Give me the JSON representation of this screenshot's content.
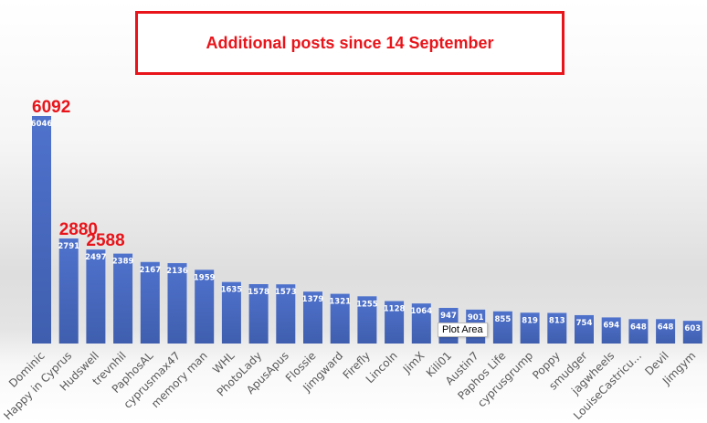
{
  "chart_data": {
    "type": "bar",
    "title": "Additional posts since 14 September",
    "categories": [
      "Dominic",
      "Happy in Cyprus",
      "Hudswell",
      "trevnhil",
      "PaphosAL",
      "cyprusmax47",
      "memory man",
      "WHL",
      "PhotoLady",
      "ApusApus",
      "Flossie",
      "Jimgward",
      "Firefly",
      "Lincoln",
      "JimX",
      "Kili01",
      "Austin7",
      "Paphos Life",
      "cyprusgrump",
      "Poppy",
      "smudger",
      "jagwheels",
      "LouiseCastricu...",
      "Devil",
      "Jimgym"
    ],
    "values": [
      6046,
      2791,
      2497,
      2389,
      2167,
      2136,
      1959,
      1635,
      1578,
      1573,
      1379,
      1321,
      1255,
      1128,
      1064,
      947,
      901,
      855,
      819,
      813,
      754,
      694,
      648,
      648,
      603
    ],
    "annotations": [
      {
        "category": "Dominic",
        "text": "6092"
      },
      {
        "category": "Happy in Cyprus",
        "text": "2880"
      },
      {
        "category": "Hudswell",
        "text": "2588"
      }
    ],
    "bar_color": "#4a6cc4",
    "annotation_color": "#e8141a",
    "grid": false,
    "legend": "none"
  },
  "tooltip": "Plot Area"
}
